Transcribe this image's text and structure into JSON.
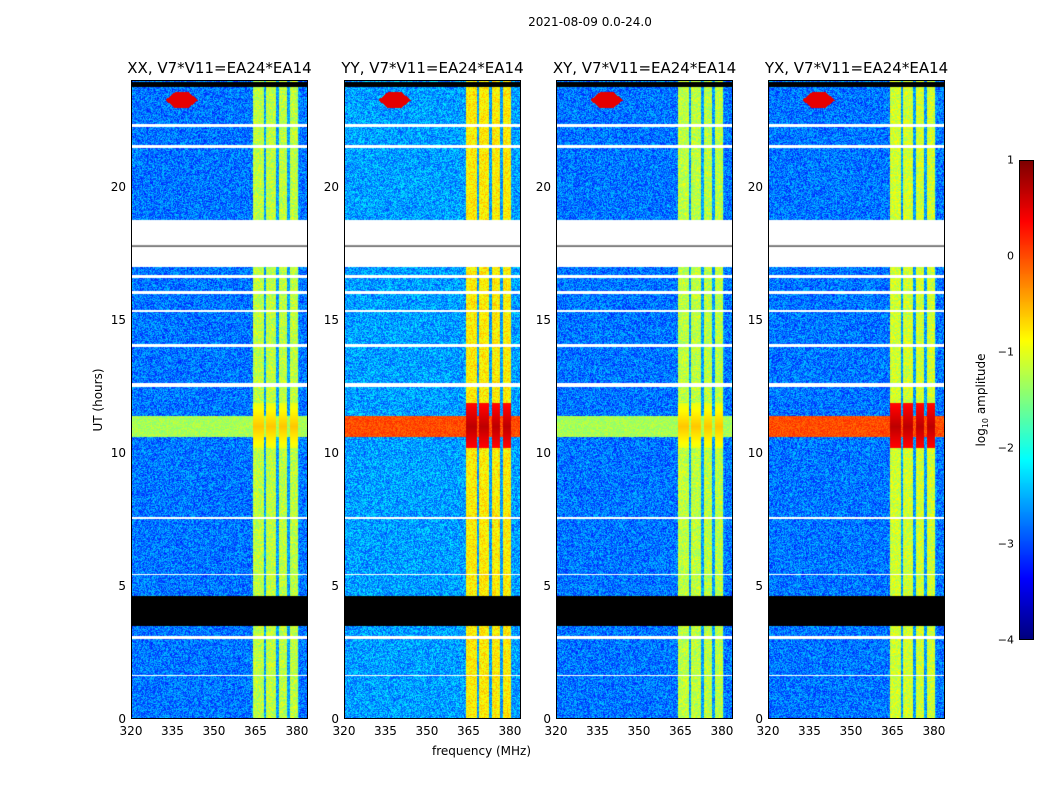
{
  "suptitle": "2021-08-09 0.0-24.0",
  "chart_data": {
    "type": "heatmap",
    "xlabel": "frequency (MHz)",
    "ylabel": "UT (hours)",
    "xlim": [
      320,
      384
    ],
    "ylim": [
      0,
      24
    ],
    "xticks": [
      320,
      335,
      350,
      365,
      380
    ],
    "yticks": [
      0,
      5,
      10,
      15,
      20
    ],
    "colorbar": {
      "label": "log10 amplitude",
      "label_main": "log",
      "label_sub": "10",
      "label_rest": " amplitude",
      "range": [
        -4,
        1
      ],
      "ticks": [
        "1",
        "0",
        "−1",
        "−2",
        "−3",
        "−4"
      ],
      "tick_values": [
        1,
        0,
        -1,
        -2,
        -3,
        -4
      ],
      "colormap": "jet"
    },
    "panels": [
      {
        "title": "XX, V7*V11=EA24*EA14",
        "background_level": -2.8,
        "rfi_10_11h_level": -1.0,
        "band_level": -1.2
      },
      {
        "title": "YY, V7*V11=EA24*EA14",
        "background_level": -2.6,
        "rfi_10_11h_level": 0.3,
        "band_level": -0.8
      },
      {
        "title": "XY, V7*V11=EA24*EA14",
        "background_level": -2.8,
        "rfi_10_11h_level": -1.0,
        "band_level": -1.2
      },
      {
        "title": "YX, V7*V11=EA24*EA14",
        "background_level": -2.8,
        "rfi_10_11h_level": 0.3,
        "band_level": -1.1
      }
    ],
    "features": {
      "strong_band_mhz": [
        364,
        381
      ],
      "band_gaps_mhz": [
        368.5,
        373,
        377,
        381
      ],
      "flagged_white_hours": [
        [
          17.0,
          18.8
        ],
        [
          12.5,
          12.65
        ],
        [
          21.5,
          21.6
        ],
        [
          22.3,
          22.4
        ],
        [
          14.0,
          14.1
        ],
        [
          15.3,
          15.4
        ],
        [
          16.0,
          16.1
        ],
        [
          16.6,
          16.7
        ],
        [
          7.5,
          7.6
        ],
        [
          5.4,
          5.45
        ],
        [
          3.0,
          3.1
        ],
        [
          1.6,
          1.65
        ]
      ],
      "flagged_black_hours": [
        [
          3.5,
          4.6
        ],
        [
          23.8,
          24.0
        ]
      ],
      "rfi_event_hours": [
        10.2,
        11.9
      ],
      "narrowband_spike": {
        "freq_mhz": 338,
        "hour": 23.3
      }
    }
  }
}
